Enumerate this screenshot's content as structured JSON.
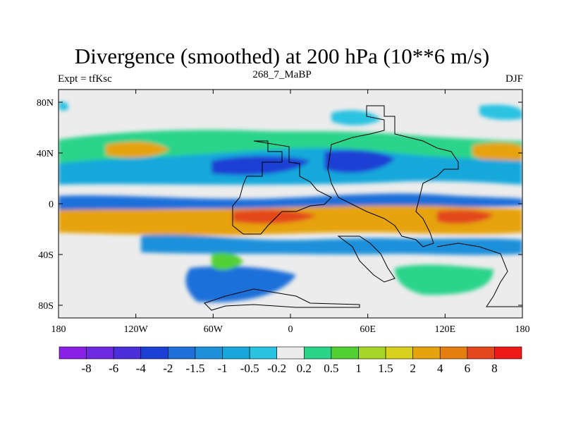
{
  "title": "Divergence (smoothed) at 200 hPa (10**6 m/s)",
  "left_label": "Expt = tfKsc",
  "center_label": "268_7_MaBP",
  "right_label": "DJF",
  "map": {
    "x_ticks": [
      "180",
      "120W",
      "60W",
      "0",
      "60E",
      "120E",
      "180"
    ],
    "y_ticks": [
      "80N",
      "40N",
      "0",
      "40S",
      "80S"
    ],
    "lon_values": [
      -180,
      -120,
      -60,
      0,
      60,
      120,
      180
    ],
    "lat_values": [
      80,
      40,
      0,
      -40,
      -80
    ],
    "lat_range": [
      -90,
      90
    ],
    "lon_range": [
      -180,
      180
    ]
  },
  "colorbar": {
    "labels": [
      "-8",
      "-6",
      "-4",
      "-2",
      "-1.5",
      "-1",
      "-0.5",
      "-0.2",
      "0.2",
      "0.5",
      "1",
      "1.5",
      "2",
      "4",
      "6",
      "8"
    ],
    "colors": [
      "#8a1fe6",
      "#6d28e0",
      "#4b2fd8",
      "#1d3fd3",
      "#1f6fd9",
      "#1f90da",
      "#18a7db",
      "#2bc3e2",
      "#ececec",
      "#2bd48a",
      "#52d034",
      "#a7d629",
      "#d7d21e",
      "#e6a30f",
      "#e57f0f",
      "#e3471b",
      "#ee1a1a"
    ]
  },
  "colors": {
    "background_field": "#ececec",
    "continent_outline": "#000000"
  }
}
